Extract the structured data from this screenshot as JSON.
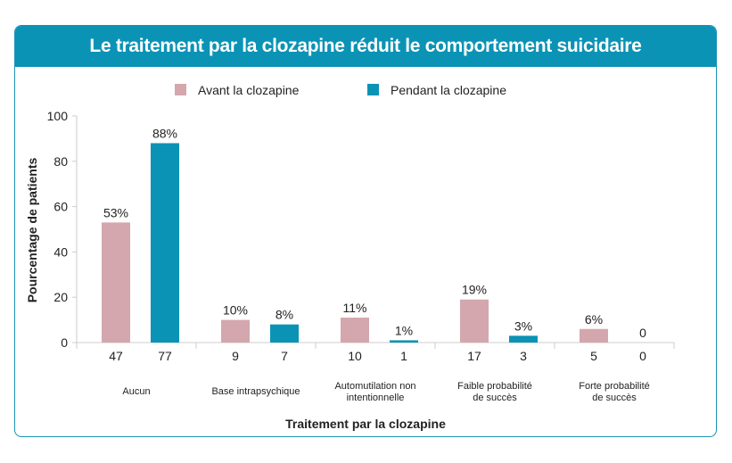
{
  "chart_data": {
    "type": "bar",
    "title": "Le traitement par la clozapine réduit le comportement suicidaire",
    "xlabel": "Traitement par la clozapine",
    "ylabel": "Pourcentage de patients",
    "ylim": [
      0,
      100
    ],
    "yticks": [
      "0",
      "20",
      "40",
      "60",
      "80",
      "100"
    ],
    "legend_position": "top-center",
    "categories": [
      [
        "Aucun"
      ],
      [
        "Base intrapsychique"
      ],
      [
        "Automutilation non",
        "intentionnelle"
      ],
      [
        "Faible probabilité",
        "de succès"
      ],
      [
        "Forte probabilité",
        "de succès"
      ]
    ],
    "series": [
      {
        "name": "Avant la clozapine",
        "color": "#d3a7ad",
        "values": [
          53,
          10,
          11,
          19,
          6
        ],
        "labels": [
          "53%",
          "10%",
          "11%",
          "19%",
          "6%"
        ],
        "counts": [
          "47",
          "9",
          "10",
          "17",
          "5"
        ]
      },
      {
        "name": "Pendant la clozapine",
        "color": "#0b93b5",
        "values": [
          88,
          8,
          1,
          3,
          0
        ],
        "labels": [
          "88%",
          "8%",
          "1%",
          "3%",
          "0"
        ],
        "counts": [
          "77",
          "7",
          "1",
          "3",
          "0"
        ]
      }
    ]
  }
}
